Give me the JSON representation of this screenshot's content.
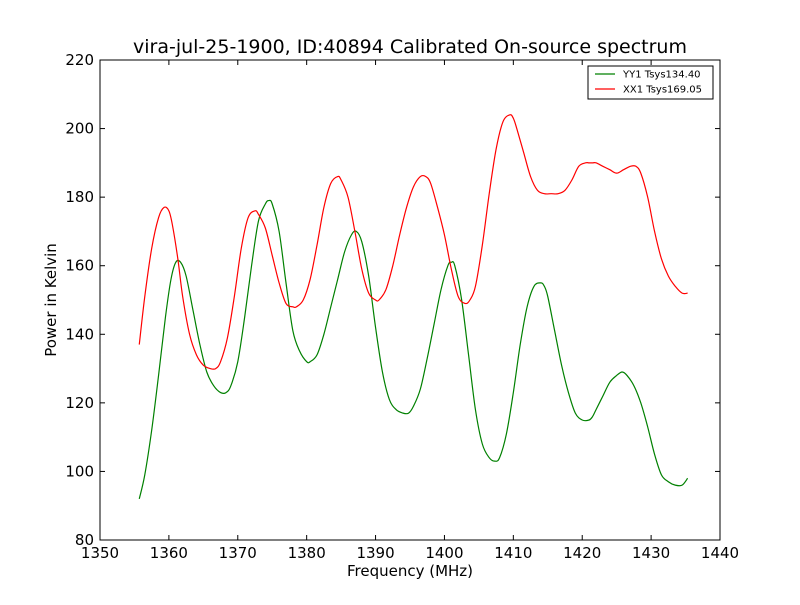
{
  "figure": {
    "background": "#ffffff"
  },
  "chart_data": {
    "type": "line",
    "title": "vira-jul-25-1900, ID:40894 Calibrated On-source spectrum",
    "xlabel": "Frequency (MHz)",
    "ylabel": "Power in Kelvin",
    "xlim": [
      1350,
      1440
    ],
    "ylim": [
      80,
      220
    ],
    "xticks": [
      1350,
      1360,
      1370,
      1380,
      1390,
      1400,
      1410,
      1420,
      1430,
      1440
    ],
    "yticks": [
      80,
      100,
      120,
      140,
      160,
      180,
      200,
      220
    ],
    "grid": false,
    "legend_position": "top-right",
    "series": [
      {
        "name": "YY1 Tsys134.40",
        "color": "#008000",
        "x": [
          1355.7,
          1356.5,
          1357.5,
          1358.5,
          1359.5,
          1360.3,
          1361.0,
          1361.7,
          1362.5,
          1363.5,
          1364.5,
          1365.5,
          1366.5,
          1367.5,
          1368.3,
          1369.0,
          1370.0,
          1371.0,
          1372.0,
          1373.0,
          1374.0,
          1374.5,
          1375.0,
          1376.0,
          1377.0,
          1378.0,
          1379.0,
          1380.0,
          1380.5,
          1381.5,
          1382.5,
          1383.5,
          1384.5,
          1385.5,
          1386.5,
          1387.2,
          1388.0,
          1389.0,
          1390.0,
          1391.0,
          1392.0,
          1393.0,
          1394.0,
          1394.8,
          1395.5,
          1396.5,
          1397.5,
          1398.5,
          1399.5,
          1400.5,
          1401.0,
          1401.5,
          1402.5,
          1403.5,
          1404.5,
          1405.5,
          1406.5,
          1407.3,
          1408.0,
          1409.0,
          1410.0,
          1411.0,
          1412.0,
          1413.0,
          1414.0,
          1414.5,
          1415.0,
          1416.0,
          1417.0,
          1418.0,
          1419.0,
          1420.0,
          1421.0,
          1421.5,
          1422.0,
          1423.0,
          1424.0,
          1425.0,
          1425.8,
          1426.5,
          1427.5,
          1428.5,
          1429.5,
          1430.5,
          1431.5,
          1432.5,
          1433.5,
          1434.5,
          1435.3
        ],
        "values": [
          92,
          99,
          112,
          128,
          145,
          156,
          161,
          161,
          157,
          147,
          137,
          129,
          125,
          123,
          123,
          125,
          132,
          145,
          160,
          173,
          178,
          179,
          178,
          170,
          155,
          141,
          135,
          132,
          132,
          134,
          140,
          148,
          156,
          164,
          169,
          170,
          167,
          157,
          142,
          129,
          121,
          118,
          117,
          117,
          119,
          124,
          133,
          143,
          153,
          160,
          161,
          160,
          150,
          134,
          118,
          108,
          104,
          103,
          104,
          111,
          123,
          137,
          148,
          154,
          155,
          154,
          151,
          141,
          131,
          123,
          117,
          115,
          115,
          116,
          118,
          122,
          126,
          128,
          129,
          128,
          125,
          120,
          113,
          105,
          99,
          97,
          96,
          96,
          98
        ]
      },
      {
        "name": "XX1 Tsys169.05",
        "color": "#ff0000",
        "x": [
          1355.7,
          1356.5,
          1357.5,
          1358.5,
          1359.3,
          1360.0,
          1360.5,
          1361.3,
          1362.0,
          1363.0,
          1364.0,
          1365.0,
          1366.0,
          1366.8,
          1367.5,
          1368.5,
          1369.5,
          1370.5,
          1371.5,
          1372.5,
          1373.0,
          1374.0,
          1375.0,
          1376.0,
          1377.0,
          1378.0,
          1378.5,
          1379.5,
          1380.5,
          1381.5,
          1382.5,
          1383.5,
          1384.5,
          1385.0,
          1386.0,
          1387.0,
          1388.0,
          1389.0,
          1390.0,
          1390.5,
          1391.5,
          1392.5,
          1393.5,
          1394.5,
          1395.5,
          1396.5,
          1397.3,
          1398.0,
          1399.0,
          1400.0,
          1401.0,
          1402.0,
          1403.0,
          1403.7,
          1404.5,
          1405.5,
          1406.5,
          1407.5,
          1408.5,
          1409.5,
          1410.0,
          1410.5,
          1411.5,
          1412.5,
          1413.5,
          1414.5,
          1415.5,
          1416.5,
          1417.5,
          1418.5,
          1419.5,
          1420.5,
          1421.0,
          1421.5,
          1422.0,
          1423.0,
          1424.0,
          1425.0,
          1426.0,
          1427.0,
          1427.8,
          1428.5,
          1429.5,
          1430.5,
          1431.5,
          1432.5,
          1433.5,
          1434.5,
          1435.3
        ],
        "values": [
          137,
          151,
          165,
          174,
          177,
          176,
          172,
          162,
          151,
          140,
          134,
          131,
          130,
          130,
          132,
          139,
          151,
          165,
          174,
          176,
          175,
          171,
          163,
          155,
          149,
          148,
          148,
          150,
          156,
          166,
          177,
          184,
          186,
          185,
          180,
          170,
          159,
          152,
          150,
          150,
          153,
          160,
          169,
          177,
          183,
          186,
          186,
          184,
          177,
          169,
          159,
          151,
          149,
          150,
          154,
          166,
          181,
          194,
          202,
          204,
          203,
          200,
          193,
          186,
          182,
          181,
          181,
          181,
          182,
          185,
          189,
          190,
          190,
          190,
          190,
          189,
          188,
          187,
          188,
          189,
          189,
          187,
          180,
          170,
          162,
          157,
          154,
          152,
          152
        ]
      }
    ]
  }
}
